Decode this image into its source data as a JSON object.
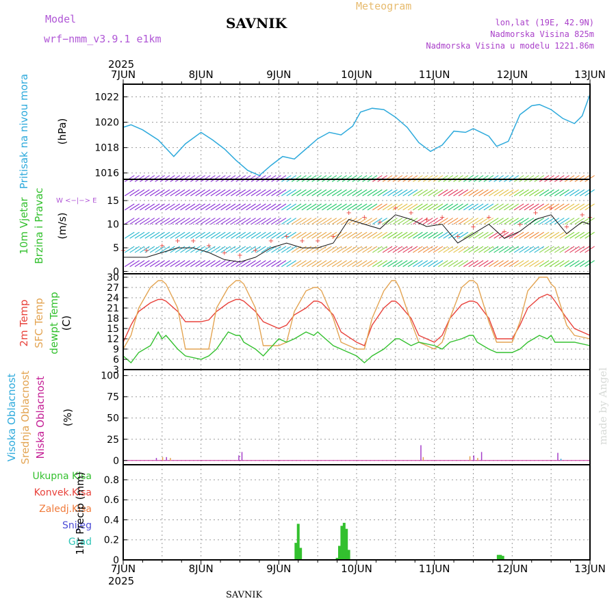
{
  "header": {
    "model_label": "Model",
    "model_name": "wrf−nmm_v3.9.1 e1km",
    "station": "SAVNIK",
    "product": "Meteogram",
    "lonlat": "lon,lat (19E, 42.9N)",
    "elevation": "Nadmorska Visina 825m",
    "model_elevation": "Nadmorska Visina u modelu 1221.86m",
    "year_top": "2025",
    "year_bottom": "2025",
    "footer_station": "SAVNIK",
    "credit": "made by Angel"
  },
  "colors": {
    "pressure": "#2eaadc",
    "temp2m": "#e8413a",
    "sfc_temp": "#e3a452",
    "dewpt": "#33c02e",
    "high_cloud": "#2eaadc",
    "mid_cloud": "#e3a452",
    "low_cloud": "#c41f95",
    "precip": "#33c02e",
    "purple": "#b057d6"
  },
  "chart_data": [
    {
      "type": "line",
      "panel": "pressure",
      "ylabel_rot": "Pritisak na nivou mora",
      "unit": "(hPa)",
      "xticks": [
        "7JUN",
        "8JUN",
        "9JUN",
        "10JUN",
        "11JUN",
        "12JUN",
        "13JUN"
      ],
      "yticks": [
        1016,
        1018,
        1020,
        1022
      ],
      "ylim": [
        1015.5,
        1023.0
      ],
      "x_days": [
        0,
        0.1,
        0.25,
        0.45,
        0.65,
        0.8,
        1.0,
        1.15,
        1.3,
        1.45,
        1.6,
        1.75,
        1.9,
        2.05,
        2.2,
        2.35,
        2.5,
        2.65,
        2.8,
        2.95,
        3.05,
        3.2,
        3.35,
        3.5,
        3.65,
        3.8,
        3.95,
        4.1,
        4.25,
        4.4,
        4.5,
        4.6,
        4.7,
        4.8,
        4.95,
        5.1,
        5.25,
        5.35,
        5.5,
        5.65,
        5.8,
        5.9,
        6.0
      ],
      "values": [
        1019.6,
        1019.8,
        1019.4,
        1018.6,
        1017.3,
        1018.3,
        1019.2,
        1018.6,
        1017.9,
        1017.0,
        1016.2,
        1015.8,
        1016.6,
        1017.3,
        1017.1,
        1017.9,
        1018.7,
        1019.2,
        1019.0,
        1019.7,
        1020.8,
        1021.1,
        1021.0,
        1020.4,
        1019.6,
        1018.4,
        1017.7,
        1018.2,
        1019.3,
        1019.2,
        1019.5,
        1019.2,
        1018.9,
        1018.1,
        1018.5,
        1020.6,
        1021.3,
        1021.4,
        1021.0,
        1020.3,
        1019.9,
        1020.5,
        1022.2
      ]
    },
    {
      "type": "line",
      "panel": "wind",
      "ylabel_rot_1": "10m Vjetar",
      "ylabel_rot_2": "Brzina i Pravac",
      "unit": "(m/s)",
      "compass": "W <−|−> E",
      "yticks": [
        0,
        5,
        10,
        15
      ],
      "ylim": [
        -0.5,
        19.5
      ],
      "x_days": [
        0,
        0.3,
        0.5,
        0.7,
        0.9,
        1.1,
        1.3,
        1.5,
        1.7,
        1.9,
        2.1,
        2.3,
        2.5,
        2.7,
        2.9,
        3.1,
        3.3,
        3.5,
        3.7,
        3.9,
        4.1,
        4.3,
        4.5,
        4.7,
        4.9,
        5.1,
        5.3,
        5.5,
        5.7,
        5.9,
        6.0
      ],
      "values": [
        3,
        3,
        4,
        5,
        5,
        4,
        2.5,
        2,
        3,
        5,
        6,
        5,
        5,
        6,
        11,
        10,
        9,
        12,
        11,
        9.5,
        10,
        6,
        8,
        10,
        7,
        8.5,
        11,
        12,
        8,
        10.5,
        10
      ]
    },
    {
      "type": "line",
      "panel": "temperature",
      "ylabel_rot_1": "2m Temp",
      "ylabel_rot_2": "SFC Temp",
      "ylabel_rot_3": "dewpt Temp",
      "unit": "(C)",
      "yticks": [
        3,
        6,
        9,
        12,
        15,
        18,
        21,
        24,
        27,
        30
      ],
      "ylim": [
        3,
        31
      ],
      "x_days": [
        0,
        0.1,
        0.2,
        0.35,
        0.45,
        0.5,
        0.55,
        0.7,
        0.8,
        1.0,
        1.1,
        1.2,
        1.35,
        1.45,
        1.5,
        1.55,
        1.7,
        1.8,
        2.0,
        2.1,
        2.2,
        2.35,
        2.45,
        2.5,
        2.55,
        2.7,
        2.8,
        3.0,
        3.1,
        3.2,
        3.35,
        3.45,
        3.5,
        3.55,
        3.7,
        3.8,
        4.0,
        4.1,
        4.2,
        4.35,
        4.45,
        4.5,
        4.55,
        4.7,
        4.8,
        5.0,
        5.1,
        5.2,
        5.35,
        5.45,
        5.5,
        5.55,
        5.7,
        5.8,
        6.0
      ],
      "series": [
        {
          "name": "2m Temp",
          "values": [
            11,
            16,
            20,
            22.5,
            23.5,
            23.5,
            23,
            20,
            17,
            17,
            17.5,
            20,
            22.5,
            23.5,
            23.5,
            23,
            20,
            17,
            15,
            16,
            19,
            21,
            23,
            23,
            22.5,
            19,
            14,
            11,
            10,
            16,
            21,
            23,
            23,
            22,
            18,
            13,
            11,
            13,
            18,
            22,
            23,
            23,
            22.5,
            18,
            12,
            12,
            16,
            21,
            24,
            25,
            24.5,
            23,
            18,
            15,
            13
          ]
        },
        {
          "name": "SFC Temp",
          "values": [
            9,
            13,
            21,
            27,
            29,
            29,
            28,
            21,
            9,
            9,
            9,
            21,
            27,
            29,
            29,
            28,
            21,
            10,
            10,
            11,
            20,
            26,
            27,
            27,
            26,
            18,
            11,
            9,
            9,
            18,
            26,
            29,
            29,
            27,
            17,
            11,
            9,
            11,
            18,
            27,
            29,
            29,
            28,
            17,
            11,
            11,
            17,
            26,
            30,
            30,
            28,
            27,
            16,
            13,
            12
          ]
        },
        {
          "name": "dewpt Temp",
          "values": [
            7,
            5,
            8,
            10,
            14,
            12,
            13,
            9,
            7,
            6,
            7,
            9,
            14,
            13,
            13,
            11,
            9,
            7,
            12,
            11,
            12,
            14,
            13,
            14,
            13,
            10,
            9,
            7,
            5,
            7,
            9,
            11,
            12,
            12,
            10,
            11,
            10,
            9,
            11,
            12,
            13,
            13,
            11,
            9,
            8,
            8,
            9,
            11,
            13,
            12,
            13,
            11,
            11,
            11,
            10
          ]
        }
      ]
    },
    {
      "type": "bar",
      "panel": "cloud",
      "ylabel_rot_1": "Visoka Oblacnost",
      "ylabel_rot_2": "Srednja Oblacnost",
      "ylabel_rot_3": "Niska Oblacnost",
      "unit": "(%)",
      "yticks": [
        0,
        25,
        50,
        75,
        100
      ],
      "ylim": [
        -5,
        107
      ],
      "bars": [
        {
          "x": 0.42,
          "series": "low",
          "value": 3
        },
        {
          "x": 0.5,
          "series": "mid",
          "value": 4
        },
        {
          "x": 0.55,
          "series": "low",
          "value": 4
        },
        {
          "x": 0.6,
          "series": "mid",
          "value": 3
        },
        {
          "x": 1.48,
          "series": "low",
          "value": 6
        },
        {
          "x": 1.52,
          "series": "low",
          "value": 10
        },
        {
          "x": 3.82,
          "series": "low",
          "value": 18
        },
        {
          "x": 3.85,
          "series": "mid",
          "value": 4
        },
        {
          "x": 4.45,
          "series": "mid",
          "value": 5
        },
        {
          "x": 4.5,
          "series": "low",
          "value": 6
        },
        {
          "x": 4.55,
          "series": "mid",
          "value": 3
        },
        {
          "x": 4.6,
          "series": "low",
          "value": 10
        },
        {
          "x": 5.58,
          "series": "low",
          "value": 9
        },
        {
          "x": 5.62,
          "series": "high",
          "value": 2
        }
      ]
    },
    {
      "type": "bar",
      "panel": "precip",
      "legend": [
        "Ukupna Kisa",
        "Konvek.Kisa",
        "Zaledj.Kisa",
        "Snijeg",
        "Grad"
      ],
      "ylabel_rot": "1hr Precip (mm)",
      "yticks": [
        0,
        0.2,
        0.4,
        0.6,
        0.8
      ],
      "ylim": [
        0,
        0.95
      ],
      "xlabels": [
        "7JUN",
        "8JUN",
        "9JUN",
        "10JUN",
        "11JUN",
        "12JUN",
        "13JUN"
      ],
      "bars": [
        {
          "x": 2.22,
          "value": 0.17
        },
        {
          "x": 2.25,
          "value": 0.36
        },
        {
          "x": 2.28,
          "value": 0.12
        },
        {
          "x": 2.75,
          "value": 0.02
        },
        {
          "x": 2.78,
          "value": 0.14
        },
        {
          "x": 2.81,
          "value": 0.34
        },
        {
          "x": 2.84,
          "value": 0.37
        },
        {
          "x": 2.87,
          "value": 0.31
        },
        {
          "x": 2.9,
          "value": 0.1
        },
        {
          "x": 4.82,
          "value": 0.05
        },
        {
          "x": 4.85,
          "value": 0.05
        },
        {
          "x": 4.88,
          "value": 0.04
        }
      ]
    }
  ]
}
